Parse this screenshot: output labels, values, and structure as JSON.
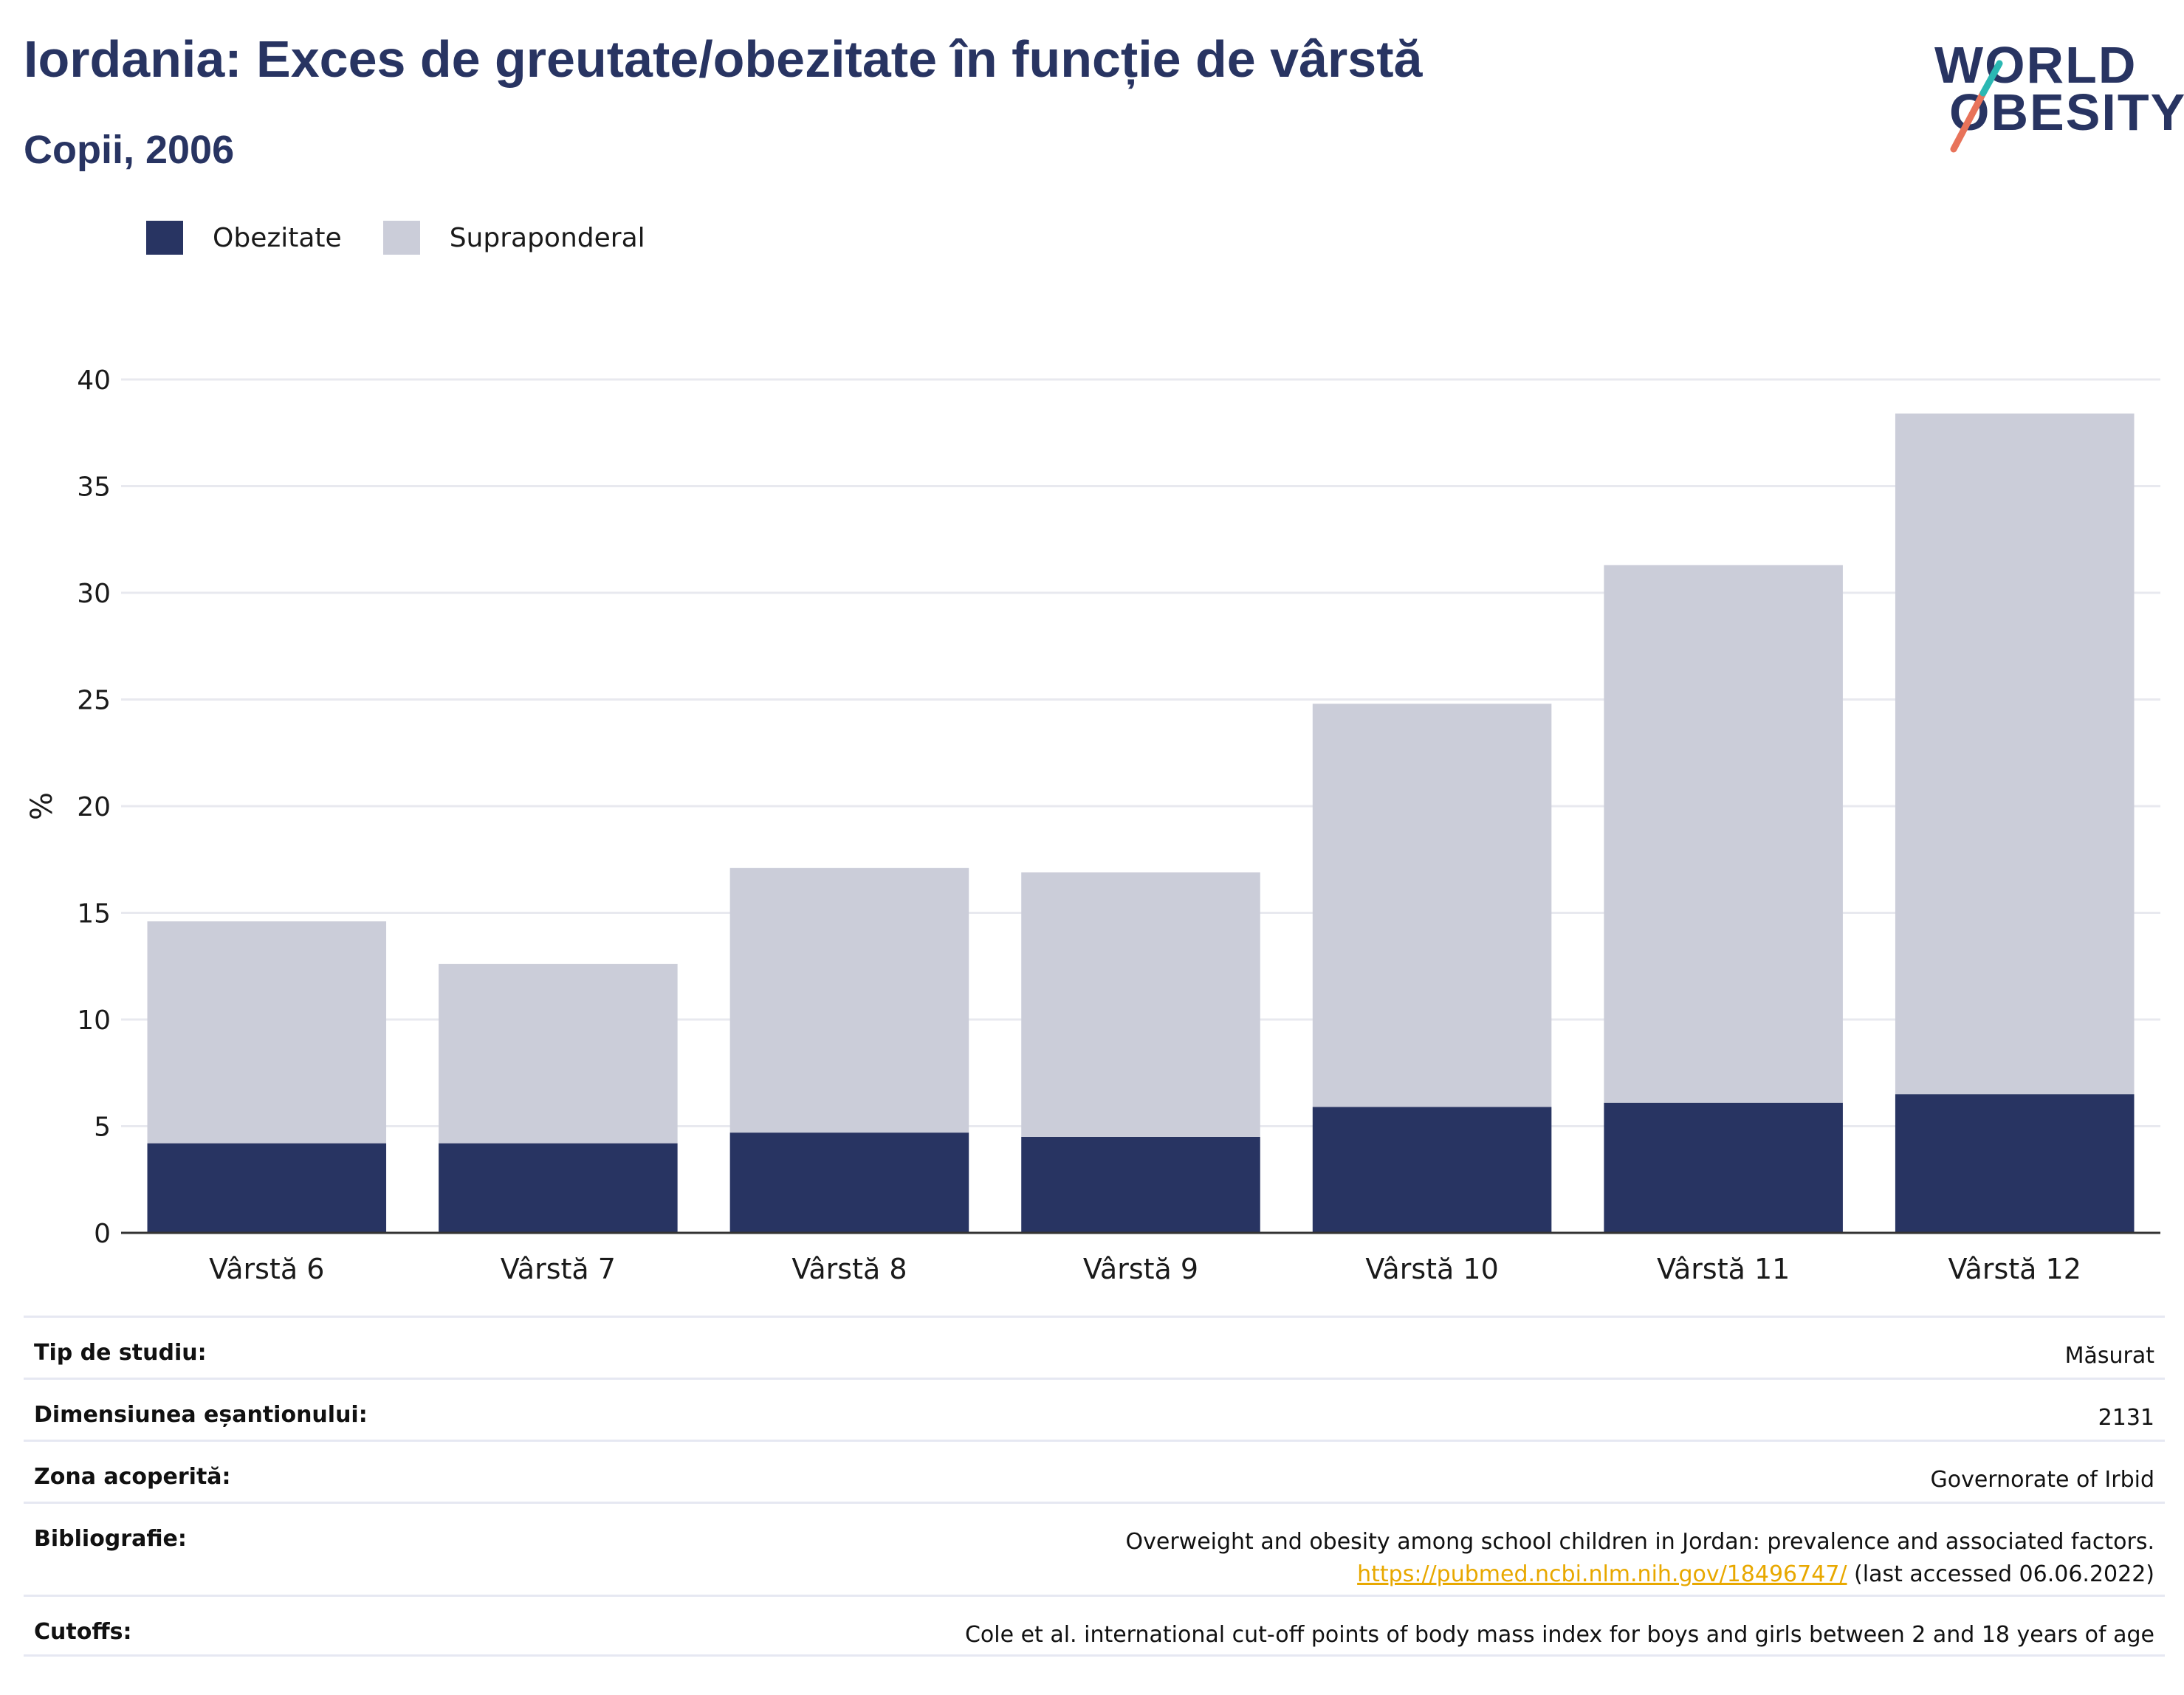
{
  "header": {
    "title": "Iordania: Exces de greutate/obezitate în funcție de vârstă",
    "subtitle": "Copii, 2006"
  },
  "logo": {
    "line1": "WORLD",
    "line2": "OBESITY"
  },
  "legend": [
    {
      "label": "Obezitate",
      "color": "#283462"
    },
    {
      "label": "Supraponderal",
      "color": "#cbcdd9"
    }
  ],
  "chart_data": {
    "type": "bar",
    "stacked": true,
    "categories": [
      "Vârstă 6",
      "Vârstă 7",
      "Vârstă 8",
      "Vârstă 9",
      "Vârstă 10",
      "Vârstă 11",
      "Vârstă 12"
    ],
    "series": [
      {
        "name": "Obezitate",
        "color": "#283462",
        "values": [
          4.2,
          4.2,
          4.7,
          4.5,
          5.9,
          6.1,
          6.5
        ]
      },
      {
        "name": "Supraponderal",
        "color": "#cbcdd9",
        "values": [
          10.4,
          8.4,
          12.4,
          12.4,
          18.9,
          25.2,
          31.9
        ]
      }
    ],
    "ylabel": "%",
    "ylim": [
      0,
      40
    ],
    "yticks": [
      0,
      5,
      10,
      15,
      20,
      25,
      30,
      35,
      40
    ],
    "grid": true,
    "legend_position": "top-left"
  },
  "info": {
    "study_type": {
      "label": "Tip de studiu:",
      "value": "Măsurat"
    },
    "sample_size": {
      "label": "Dimensiunea eșantionului:",
      "value": "2131"
    },
    "area": {
      "label": "Zona acoperită:",
      "value": "Governorate of Irbid"
    },
    "bibliography": {
      "label": "Bibliografie:",
      "text": "Overweight and obesity among school children in Jordan: prevalence and associated factors.",
      "link": "https://pubmed.ncbi.nlm.nih.gov/18496747/",
      "accessed": " (last accessed 06.06.2022)"
    },
    "cutoffs": {
      "label": "Cutoffs:",
      "value": "Cole et al. international cut-off points of body mass index for boys and girls between 2 and 18 years of age"
    }
  }
}
